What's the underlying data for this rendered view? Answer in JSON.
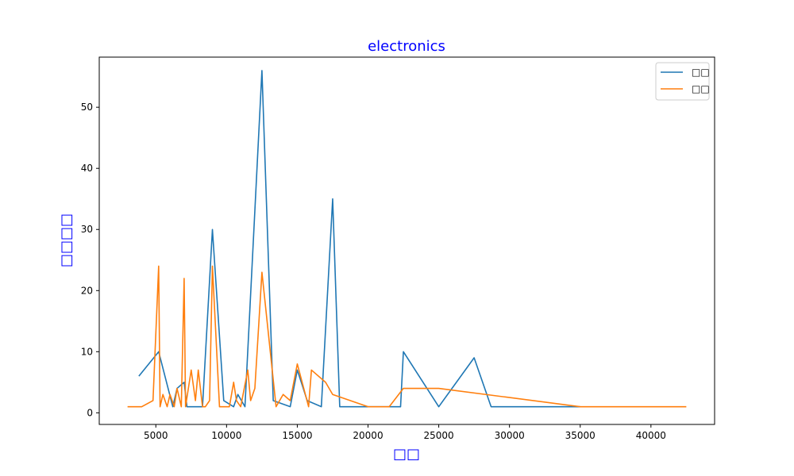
{
  "chart_data": {
    "type": "line",
    "title": "electronics",
    "xlabel": "□□",
    "ylabel": "□□□□",
    "xlim": [
      1000,
      44500
    ],
    "ylim": [
      -1.9,
      58.2
    ],
    "xticks": [
      5000,
      10000,
      15000,
      20000,
      25000,
      30000,
      35000,
      40000
    ],
    "yticks": [
      0,
      10,
      20,
      30,
      40,
      50
    ],
    "grid": false,
    "legend_position": "top-right",
    "series": [
      {
        "name": "□□",
        "color": "#1f77b4",
        "points": [
          [
            3800,
            6
          ],
          [
            5200,
            10
          ],
          [
            6200,
            1
          ],
          [
            6500,
            4
          ],
          [
            7000,
            5
          ],
          [
            7200,
            1
          ],
          [
            8000,
            1
          ],
          [
            8300,
            1
          ],
          [
            9000,
            30
          ],
          [
            9800,
            2
          ],
          [
            10500,
            1
          ],
          [
            10800,
            3
          ],
          [
            11300,
            1
          ],
          [
            12500,
            56
          ],
          [
            13300,
            2
          ],
          [
            14500,
            1
          ],
          [
            15000,
            7
          ],
          [
            15700,
            2
          ],
          [
            16700,
            1
          ],
          [
            17500,
            35
          ],
          [
            18000,
            1
          ],
          [
            22300,
            1
          ],
          [
            22500,
            10
          ],
          [
            25000,
            1
          ],
          [
            27500,
            9
          ],
          [
            28700,
            1
          ],
          [
            35000,
            1
          ]
        ]
      },
      {
        "name": "□□",
        "color": "#ff7f0e",
        "points": [
          [
            3000,
            1
          ],
          [
            4000,
            1
          ],
          [
            4800,
            2
          ],
          [
            5200,
            24
          ],
          [
            5300,
            1
          ],
          [
            5500,
            3
          ],
          [
            5800,
            1
          ],
          [
            6000,
            3
          ],
          [
            6300,
            1
          ],
          [
            6500,
            4
          ],
          [
            6800,
            1
          ],
          [
            7000,
            22
          ],
          [
            7100,
            1
          ],
          [
            7500,
            7
          ],
          [
            7800,
            2
          ],
          [
            8000,
            7
          ],
          [
            8300,
            1
          ],
          [
            8500,
            1
          ],
          [
            8800,
            2
          ],
          [
            9000,
            24
          ],
          [
            9500,
            1
          ],
          [
            10200,
            1
          ],
          [
            10500,
            5
          ],
          [
            10700,
            2
          ],
          [
            11000,
            1
          ],
          [
            11500,
            7
          ],
          [
            11700,
            2
          ],
          [
            12000,
            4
          ],
          [
            12500,
            23
          ],
          [
            13500,
            1
          ],
          [
            14000,
            3
          ],
          [
            14500,
            2
          ],
          [
            15000,
            8
          ],
          [
            15800,
            1
          ],
          [
            16000,
            7
          ],
          [
            17000,
            5
          ],
          [
            17500,
            3
          ],
          [
            20000,
            1
          ],
          [
            21500,
            1
          ],
          [
            22500,
            4
          ],
          [
            25000,
            4
          ],
          [
            35000,
            1
          ],
          [
            42500,
            1
          ]
        ]
      }
    ]
  }
}
